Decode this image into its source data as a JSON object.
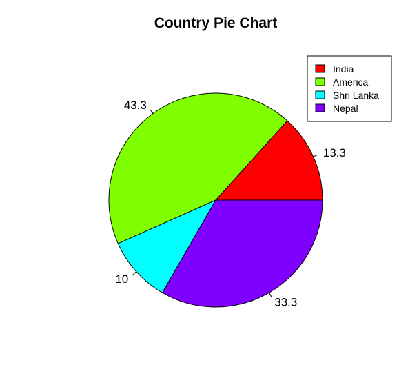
{
  "chart_data": {
    "type": "pie",
    "title": "Country Pie Chart",
    "labels": [
      "13.3",
      "43.3",
      "10",
      "33.3"
    ],
    "values": [
      13.3,
      43.3,
      10,
      33.3
    ],
    "legend": {
      "position": "top-right",
      "entries": [
        "India",
        "America",
        "Shri Lanka",
        "Nepal"
      ]
    },
    "colors": [
      "#FF0000",
      "#80FF00",
      "#00FFFF",
      "#8000FF"
    ],
    "start_angle_deg": 0,
    "direction": "counterclockwise"
  }
}
